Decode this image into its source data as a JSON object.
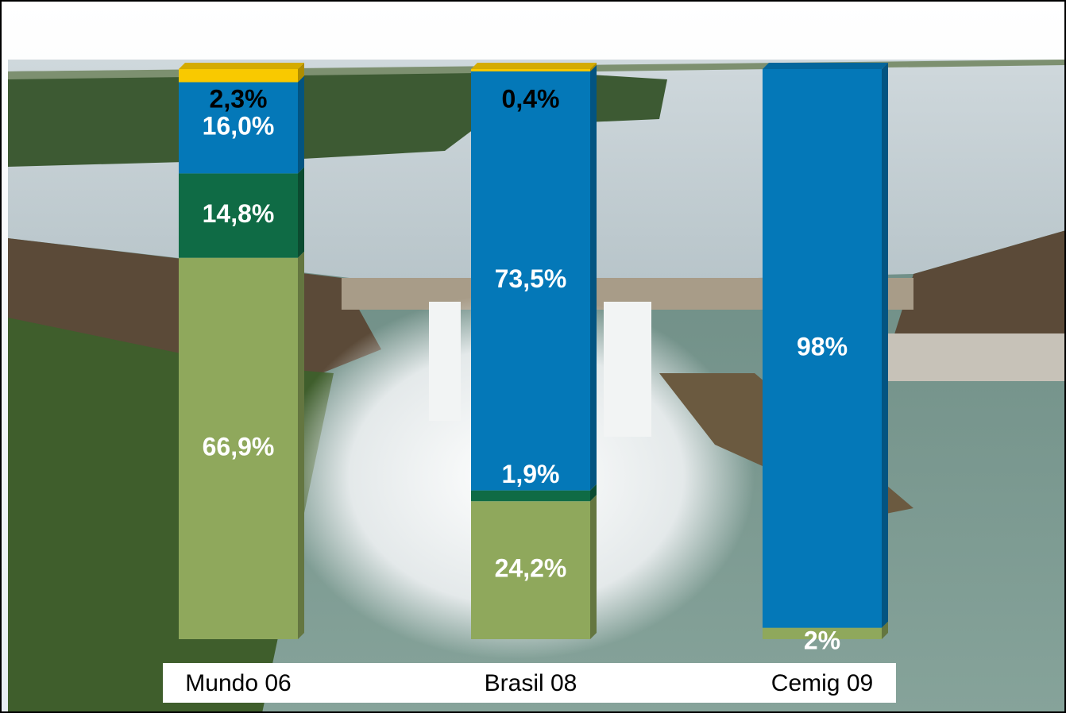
{
  "chart_data": {
    "type": "stacked_bar",
    "categories": [
      "Mundo 06",
      "Brasil 08",
      "Cemig 09"
    ],
    "ylim": [
      0,
      100
    ],
    "series": [
      {
        "color": "#8fa85c",
        "label_color": "#ffffff",
        "values": [
          66.9,
          24.2,
          2
        ],
        "value_labels": [
          "66,9%",
          "24,2%",
          "2%"
        ]
      },
      {
        "color": "#0f6b45",
        "label_color": "#ffffff",
        "values": [
          14.8,
          1.9,
          null
        ],
        "value_labels": [
          "14,8%",
          "1,9%",
          null
        ]
      },
      {
        "color": "#0478b8",
        "label_color": "#ffffff",
        "values": [
          16.0,
          73.5,
          98
        ],
        "value_labels": [
          "16,0%",
          "73,5%",
          "98%"
        ]
      },
      {
        "color": "#f9c900",
        "label_color": "#000000",
        "values": [
          2.3,
          0.4,
          null
        ],
        "value_labels": [
          "2,3%",
          "0,4%",
          null
        ]
      }
    ]
  }
}
